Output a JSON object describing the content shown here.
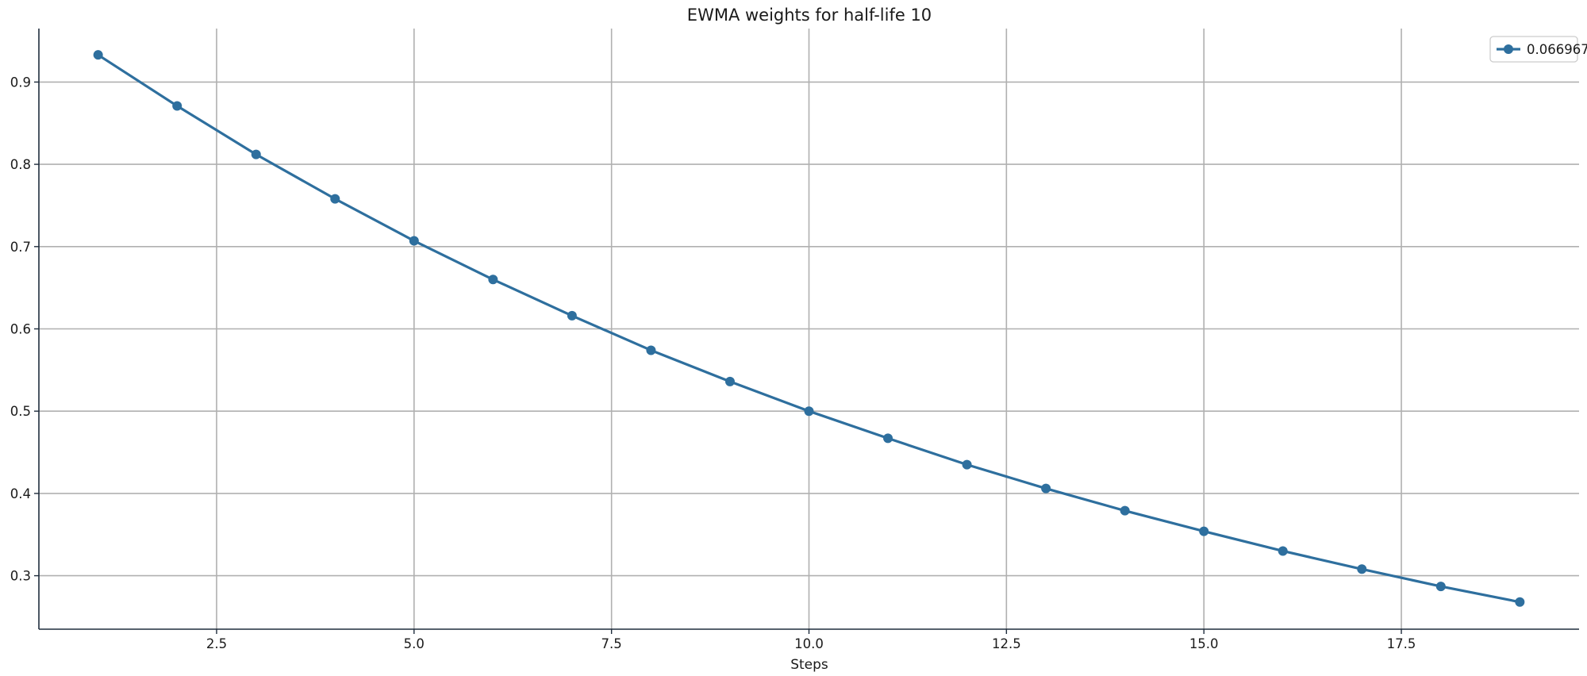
{
  "chart_data": {
    "type": "line",
    "title": "EWMA weights for half-life 10",
    "xlabel": "Steps",
    "ylabel": "",
    "xlim": [
      0.25,
      19.75
    ],
    "ylim": [
      0.235,
      0.965
    ],
    "x_ticks": [
      2.5,
      5.0,
      7.5,
      10.0,
      12.5,
      15.0,
      17.5
    ],
    "x_tick_labels": [
      "2.5",
      "5.0",
      "7.5",
      "10.0",
      "12.5",
      "15.0",
      "17.5"
    ],
    "y_ticks": [
      0.3,
      0.4,
      0.5,
      0.6,
      0.7,
      0.8,
      0.9
    ],
    "y_tick_labels": [
      "0.3",
      "0.4",
      "0.5",
      "0.6",
      "0.7",
      "0.8",
      "0.9"
    ],
    "grid": true,
    "legend_position": "top-right",
    "x": [
      1,
      2,
      3,
      4,
      5,
      6,
      7,
      8,
      9,
      10,
      11,
      12,
      13,
      14,
      15,
      16,
      17,
      18,
      19
    ],
    "series": [
      {
        "name": "0.066967",
        "color": "#2e6f9e",
        "marker": "circle",
        "values": [
          0.933,
          0.871,
          0.812,
          0.758,
          0.707,
          0.66,
          0.616,
          0.574,
          0.536,
          0.5,
          0.467,
          0.435,
          0.406,
          0.379,
          0.354,
          0.33,
          0.308,
          0.287,
          0.268
        ]
      }
    ]
  }
}
